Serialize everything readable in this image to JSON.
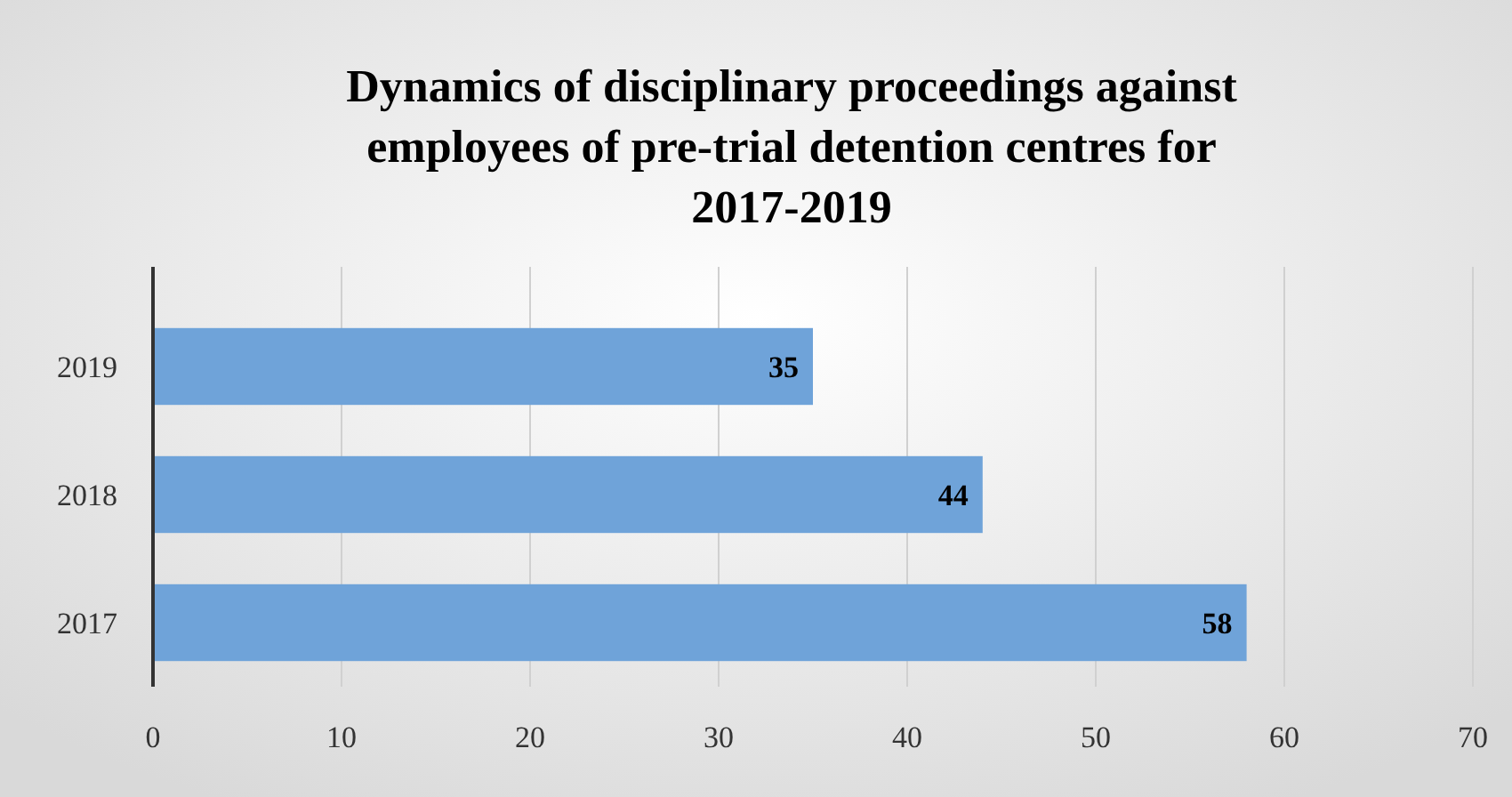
{
  "chart_data": {
    "type": "bar",
    "orientation": "horizontal",
    "title": "Dynamics of disciplinary proceedings against employees of pre-trial detention centres for 2017-2019",
    "categories": [
      "2019",
      "2018",
      "2017"
    ],
    "values": [
      35,
      44,
      58
    ],
    "color": "#6fa3d9",
    "xlim": [
      0,
      70
    ],
    "xticks": [
      0,
      10,
      20,
      30,
      40,
      50,
      60,
      70
    ],
    "grid": "x",
    "data_labels": true
  }
}
